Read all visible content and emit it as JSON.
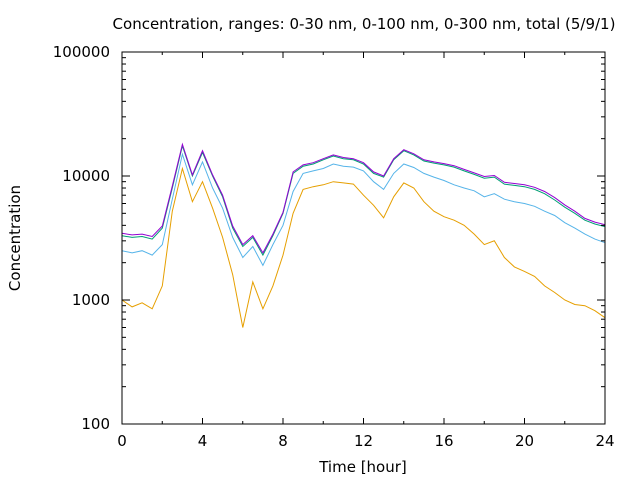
{
  "chart_data": {
    "type": "line",
    "title": "Concentration, ranges: 0-30 nm, 0-100 nm, 0-300 nm, total (5/9/1)",
    "xlabel": "Time [hour]",
    "ylabel": "Concentration",
    "xlim": [
      0,
      24
    ],
    "ylim": [
      100,
      100000
    ],
    "yscale": "log",
    "grid": false,
    "legend": "none",
    "x_ticks": [
      0,
      4,
      8,
      12,
      16,
      20,
      24
    ],
    "x_tick_labels": [
      "0",
      "4",
      "8",
      "12",
      "16",
      "20",
      "24"
    ],
    "y_ticks": [
      100,
      1000,
      10000,
      100000
    ],
    "y_tick_labels": [
      "100",
      "1000",
      "10000",
      "100000"
    ],
    "x": [
      0,
      0.5,
      1,
      1.5,
      2,
      2.5,
      3,
      3.5,
      4,
      4.5,
      5,
      5.5,
      6,
      6.5,
      7,
      7.5,
      8,
      8.5,
      9,
      9.5,
      10,
      10.5,
      11,
      11.5,
      12,
      12.5,
      13,
      13.5,
      14,
      14.5,
      15,
      15.5,
      16,
      16.5,
      17,
      17.5,
      18,
      18.5,
      19,
      19.5,
      20,
      20.5,
      21,
      21.5,
      22,
      22.5,
      23,
      23.5,
      24
    ],
    "series": [
      {
        "color": "#e69f00",
        "values": [
          1000,
          880,
          950,
          850,
          1300,
          5200,
          11500,
          6200,
          9000,
          5500,
          3200,
          1600,
          600,
          1400,
          850,
          1300,
          2300,
          5000,
          7800,
          8200,
          8500,
          9000,
          8800,
          8600,
          7000,
          5800,
          4600,
          6800,
          8800,
          8000,
          6200,
          5200,
          4700,
          4400,
          4000,
          3400,
          2800,
          3000,
          2200,
          1850,
          1700,
          1550,
          1300,
          1150,
          1000,
          920,
          900,
          820,
          720
        ]
      },
      {
        "color": "#56b4e9",
        "values": [
          2500,
          2400,
          2500,
          2300,
          2800,
          6500,
          15000,
          8500,
          13000,
          8000,
          5500,
          3200,
          2200,
          2700,
          1900,
          2800,
          4000,
          7500,
          10500,
          11000,
          11500,
          12500,
          12000,
          11800,
          11000,
          9000,
          7800,
          10500,
          12500,
          11700,
          10500,
          9800,
          9200,
          8500,
          8000,
          7600,
          6800,
          7200,
          6500,
          6200,
          6000,
          5700,
          5200,
          4800,
          4200,
          3800,
          3400,
          3100,
          2900
        ]
      },
      {
        "color": "#009e73",
        "values": [
          3300,
          3200,
          3250,
          3100,
          3800,
          8000,
          17500,
          10000,
          15500,
          10000,
          6800,
          3800,
          2700,
          3200,
          2300,
          3300,
          5000,
          10500,
          12000,
          12500,
          13500,
          14500,
          13800,
          13500,
          12500,
          10500,
          9800,
          13500,
          16000,
          14800,
          13200,
          12700,
          12300,
          11800,
          11000,
          10300,
          9600,
          9800,
          8600,
          8400,
          8200,
          7800,
          7200,
          6400,
          5600,
          5000,
          4400,
          4100,
          3900
        ]
      },
      {
        "color": "#9400d3",
        "values": [
          3450,
          3350,
          3400,
          3250,
          3950,
          8300,
          18000,
          10200,
          16000,
          10200,
          7000,
          3950,
          2800,
          3300,
          2400,
          3400,
          5100,
          10800,
          12300,
          12800,
          13800,
          14800,
          14100,
          13800,
          12800,
          10800,
          10000,
          13800,
          16300,
          15100,
          13500,
          13000,
          12600,
          12100,
          11300,
          10600,
          9900,
          10100,
          8900,
          8700,
          8500,
          8100,
          7500,
          6700,
          5850,
          5200,
          4550,
          4250,
          4050
        ]
      }
    ]
  }
}
